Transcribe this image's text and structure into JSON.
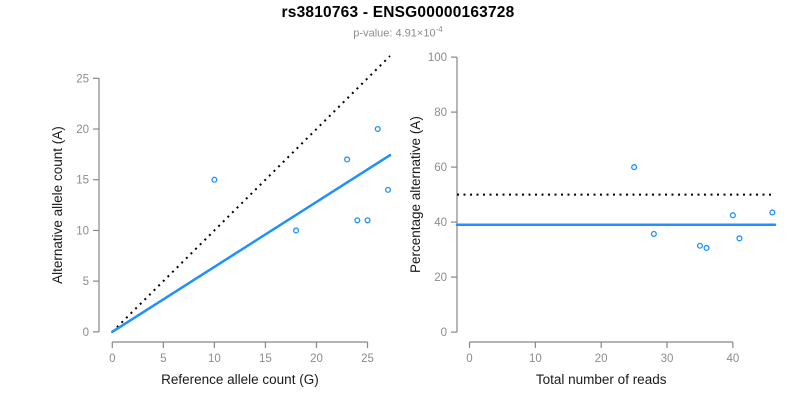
{
  "header": {
    "title": "rs3810763 - ENSG00000163728",
    "subtitle_main": "p-value: 4.91×10",
    "subtitle_exponent": "-4"
  },
  "colors": {
    "accent_blue": "#1E90FF",
    "dotted_black": "#000000",
    "axis_gray": "#878787",
    "tick_label_gray": "#8c8c8c",
    "axis_title_color": "#1a1a1a"
  },
  "chart_data": [
    {
      "type": "scatter",
      "name": "allele-counts-panel",
      "xlabel": "Reference allele count (G)",
      "ylabel": "Alternative allele count (A)",
      "x": [
        10,
        18,
        23,
        24,
        25,
        26,
        27
      ],
      "y": [
        15,
        10,
        17,
        11,
        11,
        20,
        14
      ],
      "xticks": [
        0,
        5,
        10,
        15,
        20,
        25
      ],
      "yticks": [
        0,
        5,
        10,
        15,
        20,
        25
      ],
      "xlim": [
        -1.3,
        27.2
      ],
      "ylim": [
        -1.0,
        27.2
      ],
      "grid": false,
      "legend": null,
      "lines": [
        {
          "name": "identity-line",
          "style": "dotted",
          "color": "#000000",
          "slope": 1,
          "intercept": 0,
          "x_range": [
            0,
            27.2
          ]
        },
        {
          "name": "fit-line",
          "style": "solid",
          "color": "#1E90FF",
          "slope": 0.6405,
          "intercept": 0,
          "x_range": [
            0,
            27.2
          ]
        }
      ]
    },
    {
      "type": "scatter",
      "name": "percentage-panel",
      "xlabel": "Total number of reads",
      "ylabel": "Percentage alternative (A)",
      "x": [
        25,
        28,
        35,
        36,
        40,
        41,
        46
      ],
      "y": [
        60,
        35.7,
        31.4,
        30.6,
        42.5,
        34.1,
        43.5
      ],
      "xticks": [
        0,
        10,
        20,
        30,
        40
      ],
      "yticks": [
        0,
        20,
        40,
        60,
        80,
        100
      ],
      "xlim": [
        -1.9,
        46.4
      ],
      "ylim": [
        -3.6,
        100.4
      ],
      "grid": false,
      "legend": null,
      "lines": [
        {
          "name": "expected-50-line",
          "style": "dotted",
          "color": "#000000",
          "slope": 0,
          "intercept": 50,
          "x_range": [
            -1.9,
            46.4
          ]
        },
        {
          "name": "mean-percentage-line",
          "style": "solid",
          "color": "#1E90FF",
          "slope": 0,
          "intercept": 39.04,
          "x_range": [
            -1.9,
            46.4
          ]
        }
      ]
    }
  ]
}
